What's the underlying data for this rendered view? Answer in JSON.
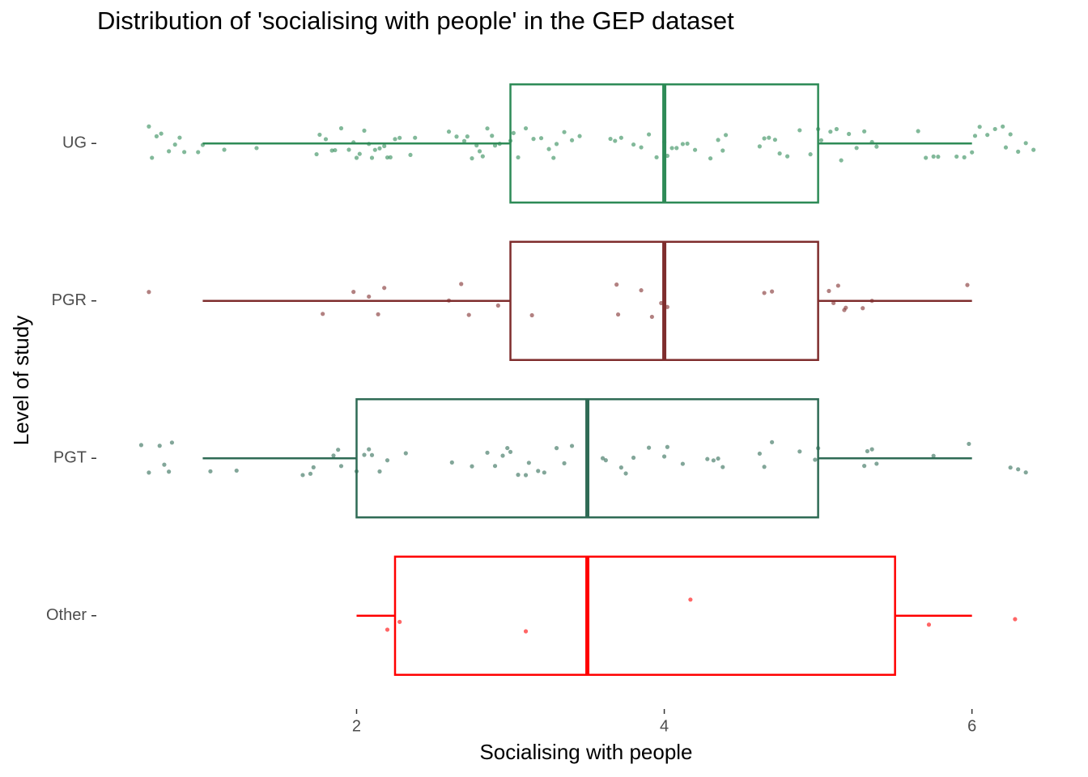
{
  "chart_data": {
    "type": "boxplot",
    "title": "Distribution of 'socialising with people' in the GEP dataset",
    "x_label": "Socialising with people",
    "y_label": "Level of study",
    "categories": [
      "UG",
      "PGR",
      "PGT",
      "Other"
    ],
    "xlim": [
      0.34,
      6.47
    ],
    "xticks": [
      2,
      4,
      6
    ],
    "grid": false,
    "boxes": [
      {
        "color": "#2e8b57",
        "low": 1,
        "q1": 3,
        "median": 4,
        "q3": 5,
        "high": 6,
        "points": [
          0.65,
          0.67,
          0.7,
          0.73,
          0.78,
          0.82,
          0.85,
          0.88,
          0.97,
          1.0,
          1.14,
          1.35,
          1.74,
          1.76,
          1.8,
          1.84,
          1.86,
          1.9,
          1.95,
          1.98,
          2.0,
          2.02,
          2.05,
          2.08,
          2.1,
          2.12,
          2.15,
          2.18,
          2.2,
          2.22,
          2.25,
          2.28,
          2.35,
          2.38,
          2.6,
          2.65,
          2.7,
          2.72,
          2.75,
          2.78,
          2.8,
          2.82,
          2.85,
          2.88,
          2.9,
          2.93,
          3.0,
          3.02,
          3.05,
          3.1,
          3.15,
          3.2,
          3.25,
          3.28,
          3.3,
          3.35,
          3.4,
          3.45,
          3.65,
          3.68,
          3.72,
          3.8,
          3.85,
          3.9,
          3.95,
          4.0,
          4.02,
          4.05,
          4.08,
          4.12,
          4.15,
          4.2,
          4.3,
          4.35,
          4.38,
          4.4,
          4.62,
          4.65,
          4.68,
          4.72,
          4.75,
          4.8,
          4.88,
          4.95,
          5.0,
          5.02,
          5.08,
          5.12,
          5.15,
          5.2,
          5.25,
          5.3,
          5.35,
          5.38,
          5.65,
          5.7,
          5.75,
          5.78,
          5.9,
          5.95,
          6.0,
          6.02,
          6.05,
          6.1,
          6.15,
          6.2,
          6.22,
          6.25,
          6.3,
          6.35,
          6.4
        ]
      },
      {
        "color": "#7f2d2d",
        "low": 1,
        "q1": 3,
        "median": 4,
        "q3": 5,
        "high": 6,
        "points": [
          0.65,
          1.78,
          1.98,
          2.08,
          2.14,
          2.18,
          2.6,
          2.68,
          2.73,
          2.92,
          3.14,
          3.69,
          3.7,
          3.85,
          3.92,
          3.98,
          4.02,
          4.65,
          4.7,
          5.07,
          5.1,
          5.13,
          5.17,
          5.18,
          5.29,
          5.35,
          5.97
        ]
      },
      {
        "color": "#2f6b55",
        "low": 1,
        "q1": 2,
        "median": 3.5,
        "q3": 5,
        "high": 6,
        "points": [
          0.6,
          0.65,
          0.72,
          0.75,
          0.78,
          0.8,
          1.05,
          1.22,
          1.65,
          1.7,
          1.72,
          1.85,
          1.88,
          1.9,
          2.0,
          2.05,
          2.08,
          2.1,
          2.15,
          2.2,
          2.32,
          2.62,
          2.75,
          2.85,
          2.9,
          2.95,
          2.98,
          3.0,
          3.05,
          3.1,
          3.12,
          3.18,
          3.22,
          3.3,
          3.35,
          3.4,
          3.6,
          3.62,
          3.72,
          3.75,
          3.8,
          3.9,
          4.0,
          4.02,
          4.12,
          4.28,
          4.32,
          4.35,
          4.38,
          4.62,
          4.65,
          4.7,
          4.88,
          4.98,
          5.0,
          5.3,
          5.32,
          5.35,
          5.38,
          5.75,
          5.98,
          6.25,
          6.3,
          6.35
        ]
      },
      {
        "color": "#ff0000",
        "low": 2,
        "q1": 2.25,
        "median": 3.5,
        "q3": 5.5,
        "high": 6,
        "points": [
          2.2,
          2.28,
          3.1,
          4.17,
          5.72,
          6.28
        ]
      }
    ]
  }
}
